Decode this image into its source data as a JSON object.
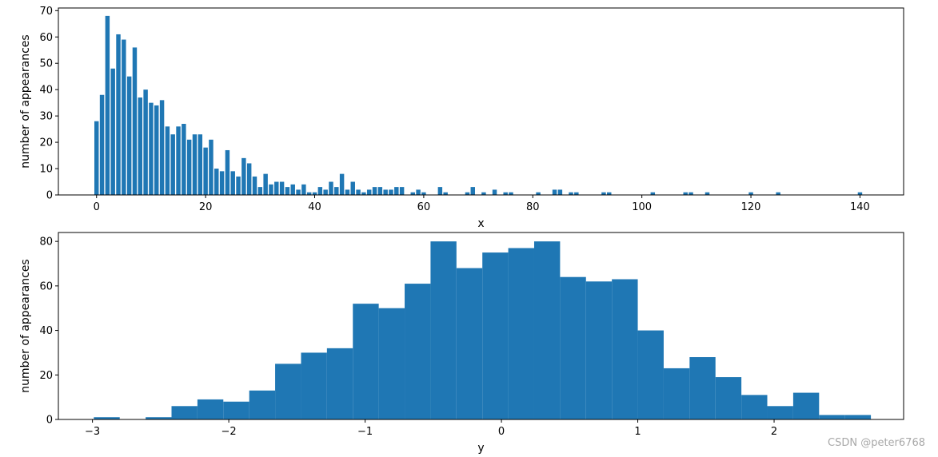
{
  "bar_color": "#1f77b4",
  "watermark": "CSDN @peter6768",
  "chart_data": [
    {
      "type": "bar",
      "xlabel": "x",
      "ylabel": "number of appearances",
      "xlim": [
        -7,
        148
      ],
      "ylim": [
        0,
        71
      ],
      "xticks": [
        0,
        20,
        40,
        60,
        80,
        100,
        120,
        140
      ],
      "yticks": [
        0,
        10,
        20,
        30,
        40,
        50,
        60,
        70
      ],
      "bar_width": 0.8,
      "x": [
        0,
        1,
        2,
        3,
        4,
        5,
        6,
        7,
        8,
        9,
        10,
        11,
        12,
        13,
        14,
        15,
        16,
        17,
        18,
        19,
        20,
        21,
        22,
        23,
        24,
        25,
        26,
        27,
        28,
        29,
        30,
        31,
        32,
        33,
        34,
        35,
        36,
        37,
        38,
        39,
        40,
        41,
        42,
        43,
        44,
        45,
        46,
        47,
        48,
        49,
        50,
        51,
        52,
        53,
        54,
        55,
        56,
        58,
        59,
        60,
        63,
        64,
        68,
        69,
        71,
        73,
        75,
        76,
        81,
        84,
        85,
        87,
        88,
        93,
        94,
        102,
        108,
        109,
        112,
        120,
        125,
        140
      ],
      "values": [
        28,
        38,
        68,
        48,
        61,
        59,
        45,
        56,
        37,
        40,
        35,
        34,
        36,
        26,
        23,
        26,
        27,
        21,
        23,
        23,
        18,
        21,
        10,
        9,
        17,
        9,
        7,
        14,
        12,
        7,
        3,
        8,
        4,
        5,
        5,
        3,
        4,
        2,
        4,
        1,
        1,
        3,
        2,
        5,
        3,
        8,
        2,
        5,
        2,
        1,
        2,
        3,
        3,
        2,
        2,
        3,
        3,
        1,
        2,
        1,
        3,
        1,
        1,
        3,
        1,
        2,
        1,
        1,
        1,
        2,
        2,
        1,
        1,
        1,
        1,
        1,
        1,
        1,
        1,
        1,
        1,
        1
      ]
    },
    {
      "type": "bar",
      "xlabel": "y",
      "ylabel": "number of appearances",
      "xlim": [
        -3.25,
        2.95
      ],
      "ylim": [
        0,
        84
      ],
      "xticks": [
        -3,
        -2,
        -1,
        0,
        1,
        2
      ],
      "xtick_labels": [
        "−3",
        "−2",
        "−1",
        "0",
        "1",
        "2"
      ],
      "yticks": [
        0,
        20,
        40,
        60,
        80
      ],
      "bin_edges": [
        -2.99,
        -2.8,
        -2.61,
        -2.42,
        -2.23,
        -2.04,
        -1.85,
        -1.66,
        -1.47,
        -1.28,
        -1.09,
        -0.9,
        -0.71,
        -0.52,
        -0.33,
        -0.14,
        0.05,
        0.24,
        0.43,
        0.62,
        0.81,
        1.0,
        1.19,
        1.38,
        1.57,
        1.76,
        1.95,
        2.14,
        2.33,
        2.52,
        2.71
      ],
      "values": [
        1,
        0,
        1,
        6,
        9,
        8,
        13,
        25,
        30,
        32,
        52,
        50,
        61,
        80,
        68,
        75,
        77,
        80,
        64,
        62,
        63,
        40,
        23,
        28,
        19,
        11,
        6,
        12,
        2,
        2
      ]
    }
  ]
}
